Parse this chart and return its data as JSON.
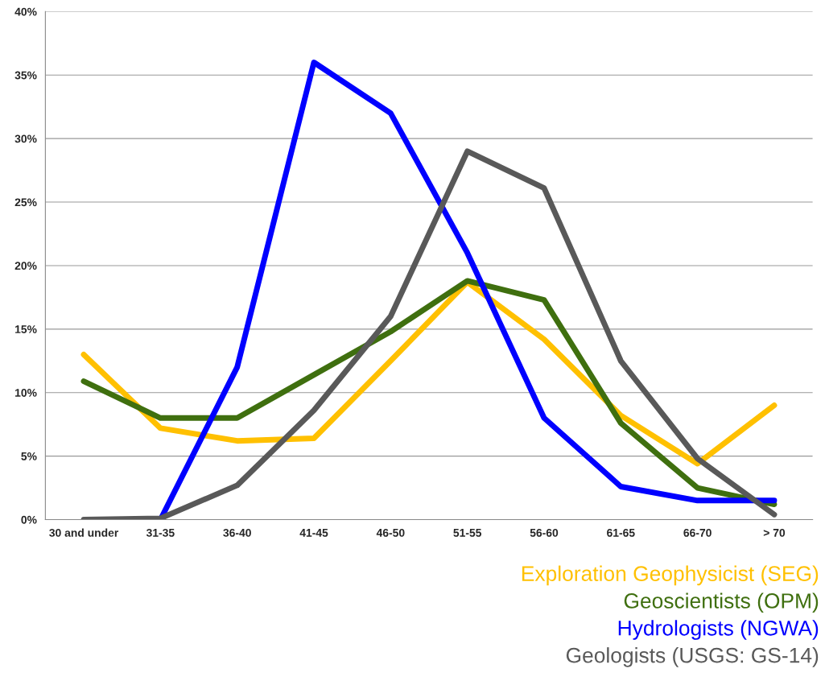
{
  "chart_data": {
    "type": "line",
    "categories": [
      "30 and under",
      "31-35",
      "36-40",
      "41-45",
      "46-50",
      "51-55",
      "56-60",
      "61-65",
      "66-70",
      "> 70"
    ],
    "series": [
      {
        "name": "Exploration Geophysicist (SEG)",
        "color": "#ffc000",
        "values": [
          13,
          7.2,
          6.2,
          6.4,
          12.5,
          18.7,
          14.2,
          8.2,
          4.4,
          9.0
        ]
      },
      {
        "name": "Geoscientists (OPM)",
        "color": "#3f6f0f",
        "values": [
          10.9,
          8.0,
          8.0,
          11.4,
          14.8,
          18.8,
          17.3,
          7.6,
          2.5,
          1.2
        ]
      },
      {
        "name": "Hydrologists (NGWA)",
        "color": "#0000ff",
        "values": [
          null,
          0,
          12,
          36,
          32,
          21,
          8,
          2.6,
          1.5,
          1.5
        ]
      },
      {
        "name": "Geologists (USGS: GS-14)",
        "color": "#595959",
        "values": [
          0,
          0.1,
          2.7,
          8.6,
          16,
          29,
          26.1,
          12.5,
          4.8,
          0.4
        ]
      }
    ],
    "ylim": [
      0,
      40
    ],
    "yticks": [
      {
        "value": 0,
        "label": "0%"
      },
      {
        "value": 5,
        "label": "5%"
      },
      {
        "value": 10,
        "label": "10%"
      },
      {
        "value": 15,
        "label": "15%"
      },
      {
        "value": 20,
        "label": "20%"
      },
      {
        "value": 25,
        "label": "25%"
      },
      {
        "value": 30,
        "label": "30%"
      },
      {
        "value": 35,
        "label": "35%"
      },
      {
        "value": 40,
        "label": "40%"
      }
    ],
    "grid": "y",
    "legend": "bottom right",
    "marker": "none",
    "line_style": "solid"
  }
}
